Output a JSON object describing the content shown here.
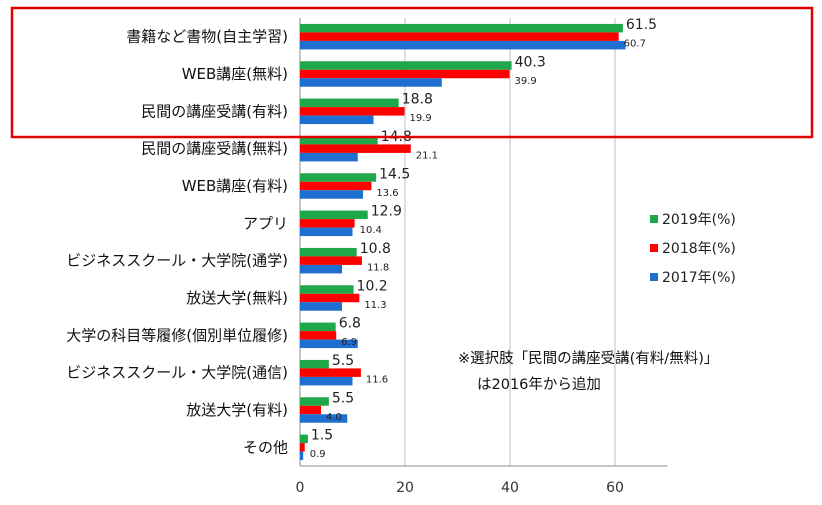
{
  "chart_data": {
    "type": "bar",
    "orientation": "horizontal",
    "categories": [
      "書籍など書物(自主学習)",
      "WEB講座(無料)",
      "民間の講座受講(有料)",
      "民間の講座受講(無料)",
      "WEB講座(有料)",
      "アプリ",
      "ビジネススクール・大学院(通学)",
      "放送大学(無料)",
      "大学の科目等履修(個別単位履修)",
      "ビジネススクール・大学院(通信)",
      "放送大学(有料)",
      "その他"
    ],
    "series": [
      {
        "name": "2019年(%)",
        "color": "#1ea84a",
        "values": [
          61.5,
          40.3,
          18.8,
          14.8,
          14.5,
          12.9,
          10.8,
          10.2,
          6.8,
          5.5,
          5.5,
          1.5
        ]
      },
      {
        "name": "2018年(%)",
        "color": "#ff0000",
        "values": [
          60.7,
          39.9,
          19.9,
          21.1,
          13.6,
          10.4,
          11.8,
          11.3,
          6.9,
          11.6,
          4.0,
          0.9
        ]
      },
      {
        "name": "2017年(%)",
        "color": "#1f6fd1",
        "values": [
          62.0,
          27.0,
          14.0,
          11.0,
          12.0,
          10.0,
          8.0,
          8.0,
          11.0,
          10.0,
          9.0,
          0.6
        ]
      }
    ],
    "value_labels": {
      "2019年(%)": [
        "61.5",
        "40.3",
        "18.8",
        "14.8",
        "14.5",
        "12.9",
        "10.8",
        "10.2",
        "6.8",
        "5.5",
        "5.5",
        "1.5"
      ],
      "2018年(%)": [
        "60.7",
        "39.9",
        "19.9",
        "21.1",
        "13.6",
        "10.4",
        "11.8",
        "11.3",
        "6.9",
        "11.6",
        "4.0",
        "0.9"
      ]
    },
    "xlim": [
      0,
      70
    ],
    "xticks": [
      "0",
      "20",
      "40",
      "60"
    ],
    "grid": true,
    "legend_placement": "right",
    "highlight_color": "#e00000",
    "highlighted_categories": 3,
    "note_lines": [
      "※選択肢「民間の講座受講(有料/無料)」",
      "は2016年から追加"
    ]
  }
}
